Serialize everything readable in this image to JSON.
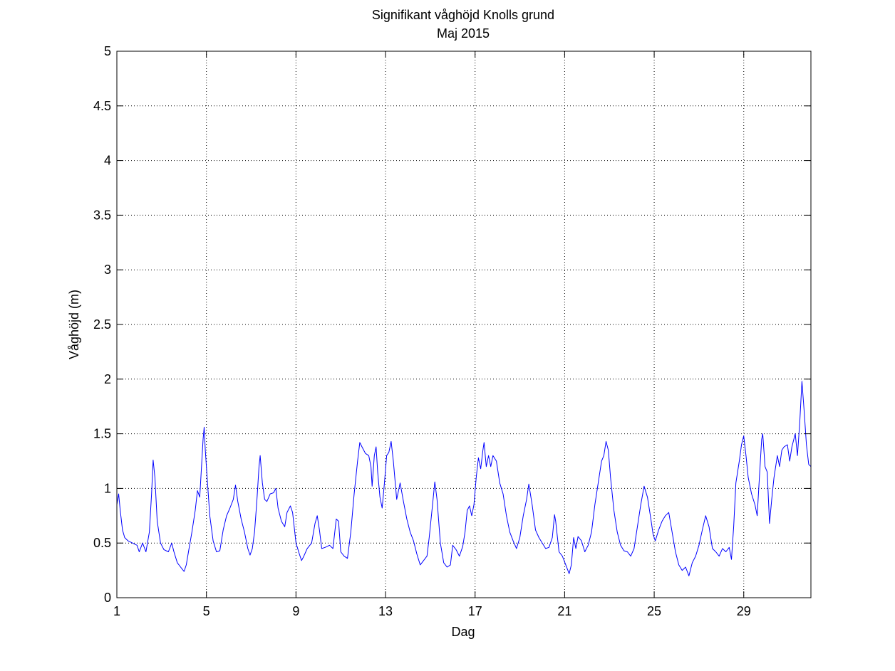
{
  "chart_data": {
    "type": "line",
    "title": "Signifikant våghöjd Knolls grund",
    "subtitle": "Maj 2015",
    "xlabel": "Dag",
    "ylabel": "Våghöjd (m)",
    "xlim": [
      1,
      32
    ],
    "ylim": [
      0,
      5
    ],
    "x_ticks": [
      1,
      5,
      9,
      13,
      17,
      21,
      25,
      29
    ],
    "x_tick_labels": [
      "1",
      "5",
      "9",
      "13",
      "17",
      "21",
      "25",
      "29"
    ],
    "y_ticks": [
      0,
      0.5,
      1,
      1.5,
      2,
      2.5,
      3,
      3.5,
      4,
      4.5,
      5
    ],
    "y_tick_labels": [
      "0",
      "0.5",
      "1",
      "1.5",
      "2",
      "2.5",
      "3",
      "3.5",
      "4",
      "4.5",
      "5"
    ],
    "grid": true,
    "grid_style": "dotted",
    "series": [
      {
        "color": "#0000ff",
        "points": [
          [
            1.0,
            0.85
          ],
          [
            1.08,
            0.95
          ],
          [
            1.15,
            0.8
          ],
          [
            1.25,
            0.62
          ],
          [
            1.35,
            0.55
          ],
          [
            1.5,
            0.52
          ],
          [
            1.7,
            0.5
          ],
          [
            1.9,
            0.48
          ],
          [
            2.0,
            0.42
          ],
          [
            2.15,
            0.5
          ],
          [
            2.3,
            0.42
          ],
          [
            2.45,
            0.6
          ],
          [
            2.55,
            0.95
          ],
          [
            2.62,
            1.26
          ],
          [
            2.7,
            1.1
          ],
          [
            2.8,
            0.7
          ],
          [
            2.95,
            0.5
          ],
          [
            3.1,
            0.44
          ],
          [
            3.3,
            0.42
          ],
          [
            3.45,
            0.5
          ],
          [
            3.55,
            0.42
          ],
          [
            3.7,
            0.32
          ],
          [
            3.85,
            0.28
          ],
          [
            4.0,
            0.24
          ],
          [
            4.1,
            0.3
          ],
          [
            4.2,
            0.42
          ],
          [
            4.35,
            0.6
          ],
          [
            4.5,
            0.8
          ],
          [
            4.6,
            0.98
          ],
          [
            4.7,
            0.92
          ],
          [
            4.78,
            1.2
          ],
          [
            4.85,
            1.45
          ],
          [
            4.9,
            1.56
          ],
          [
            4.95,
            1.35
          ],
          [
            5.05,
            1.05
          ],
          [
            5.15,
            0.75
          ],
          [
            5.3,
            0.52
          ],
          [
            5.45,
            0.42
          ],
          [
            5.6,
            0.43
          ],
          [
            5.75,
            0.62
          ],
          [
            5.9,
            0.75
          ],
          [
            6.05,
            0.82
          ],
          [
            6.2,
            0.9
          ],
          [
            6.3,
            1.03
          ],
          [
            6.4,
            0.88
          ],
          [
            6.55,
            0.72
          ],
          [
            6.7,
            0.6
          ],
          [
            6.85,
            0.45
          ],
          [
            6.95,
            0.39
          ],
          [
            7.05,
            0.45
          ],
          [
            7.15,
            0.6
          ],
          [
            7.25,
            0.88
          ],
          [
            7.35,
            1.2
          ],
          [
            7.4,
            1.3
          ],
          [
            7.5,
            1.05
          ],
          [
            7.6,
            0.9
          ],
          [
            7.7,
            0.88
          ],
          [
            7.85,
            0.95
          ],
          [
            8.0,
            0.96
          ],
          [
            8.1,
            1.0
          ],
          [
            8.2,
            0.82
          ],
          [
            8.35,
            0.7
          ],
          [
            8.5,
            0.65
          ],
          [
            8.6,
            0.78
          ],
          [
            8.75,
            0.84
          ],
          [
            8.85,
            0.78
          ],
          [
            9.0,
            0.5
          ],
          [
            9.15,
            0.4
          ],
          [
            9.25,
            0.34
          ],
          [
            9.35,
            0.38
          ],
          [
            9.5,
            0.45
          ],
          [
            9.7,
            0.5
          ],
          [
            9.85,
            0.68
          ],
          [
            9.95,
            0.75
          ],
          [
            10.05,
            0.62
          ],
          [
            10.15,
            0.45
          ],
          [
            10.3,
            0.46
          ],
          [
            10.5,
            0.48
          ],
          [
            10.65,
            0.45
          ],
          [
            10.8,
            0.72
          ],
          [
            10.9,
            0.7
          ],
          [
            11.0,
            0.42
          ],
          [
            11.15,
            0.38
          ],
          [
            11.3,
            0.36
          ],
          [
            11.45,
            0.6
          ],
          [
            11.6,
            0.95
          ],
          [
            11.75,
            1.25
          ],
          [
            11.85,
            1.42
          ],
          [
            11.95,
            1.38
          ],
          [
            12.1,
            1.32
          ],
          [
            12.25,
            1.3
          ],
          [
            12.35,
            1.2
          ],
          [
            12.4,
            1.02
          ],
          [
            12.5,
            1.3
          ],
          [
            12.58,
            1.38
          ],
          [
            12.65,
            1.15
          ],
          [
            12.75,
            0.92
          ],
          [
            12.85,
            0.82
          ],
          [
            12.95,
            1.05
          ],
          [
            13.05,
            1.3
          ],
          [
            13.15,
            1.33
          ],
          [
            13.25,
            1.43
          ],
          [
            13.35,
            1.25
          ],
          [
            13.5,
            0.9
          ],
          [
            13.65,
            1.05
          ],
          [
            13.8,
            0.88
          ],
          [
            13.95,
            0.72
          ],
          [
            14.1,
            0.6
          ],
          [
            14.25,
            0.52
          ],
          [
            14.4,
            0.4
          ],
          [
            14.55,
            0.3
          ],
          [
            14.7,
            0.34
          ],
          [
            14.85,
            0.38
          ],
          [
            14.95,
            0.55
          ],
          [
            15.1,
            0.85
          ],
          [
            15.2,
            1.06
          ],
          [
            15.3,
            0.9
          ],
          [
            15.45,
            0.5
          ],
          [
            15.6,
            0.32
          ],
          [
            15.75,
            0.28
          ],
          [
            15.9,
            0.3
          ],
          [
            16.0,
            0.48
          ],
          [
            16.15,
            0.44
          ],
          [
            16.3,
            0.38
          ],
          [
            16.45,
            0.47
          ],
          [
            16.55,
            0.6
          ],
          [
            16.65,
            0.8
          ],
          [
            16.75,
            0.84
          ],
          [
            16.85,
            0.75
          ],
          [
            16.95,
            0.85
          ],
          [
            17.05,
            1.1
          ],
          [
            17.15,
            1.28
          ],
          [
            17.25,
            1.18
          ],
          [
            17.35,
            1.35
          ],
          [
            17.4,
            1.42
          ],
          [
            17.5,
            1.2
          ],
          [
            17.6,
            1.3
          ],
          [
            17.7,
            1.2
          ],
          [
            17.8,
            1.3
          ],
          [
            17.95,
            1.25
          ],
          [
            18.1,
            1.05
          ],
          [
            18.25,
            0.95
          ],
          [
            18.4,
            0.75
          ],
          [
            18.55,
            0.6
          ],
          [
            18.7,
            0.52
          ],
          [
            18.85,
            0.45
          ],
          [
            19.0,
            0.55
          ],
          [
            19.15,
            0.75
          ],
          [
            19.3,
            0.9
          ],
          [
            19.4,
            1.04
          ],
          [
            19.55,
            0.85
          ],
          [
            19.7,
            0.62
          ],
          [
            19.85,
            0.55
          ],
          [
            20.0,
            0.5
          ],
          [
            20.15,
            0.45
          ],
          [
            20.3,
            0.46
          ],
          [
            20.45,
            0.55
          ],
          [
            20.55,
            0.76
          ],
          [
            20.6,
            0.7
          ],
          [
            20.75,
            0.42
          ],
          [
            20.9,
            0.38
          ],
          [
            21.05,
            0.3
          ],
          [
            21.2,
            0.22
          ],
          [
            21.3,
            0.3
          ],
          [
            21.4,
            0.55
          ],
          [
            21.5,
            0.45
          ],
          [
            21.6,
            0.56
          ],
          [
            21.75,
            0.52
          ],
          [
            21.9,
            0.42
          ],
          [
            22.05,
            0.48
          ],
          [
            22.2,
            0.6
          ],
          [
            22.35,
            0.85
          ],
          [
            22.5,
            1.05
          ],
          [
            22.65,
            1.25
          ],
          [
            22.75,
            1.3
          ],
          [
            22.85,
            1.43
          ],
          [
            22.95,
            1.35
          ],
          [
            23.05,
            1.1
          ],
          [
            23.2,
            0.8
          ],
          [
            23.35,
            0.6
          ],
          [
            23.5,
            0.48
          ],
          [
            23.65,
            0.43
          ],
          [
            23.8,
            0.42
          ],
          [
            23.95,
            0.38
          ],
          [
            24.1,
            0.45
          ],
          [
            24.25,
            0.65
          ],
          [
            24.4,
            0.85
          ],
          [
            24.55,
            1.02
          ],
          [
            24.7,
            0.92
          ],
          [
            24.85,
            0.72
          ],
          [
            24.95,
            0.58
          ],
          [
            25.05,
            0.52
          ],
          [
            25.2,
            0.62
          ],
          [
            25.35,
            0.7
          ],
          [
            25.5,
            0.75
          ],
          [
            25.65,
            0.78
          ],
          [
            25.8,
            0.6
          ],
          [
            25.95,
            0.42
          ],
          [
            26.1,
            0.3
          ],
          [
            26.25,
            0.25
          ],
          [
            26.4,
            0.28
          ],
          [
            26.55,
            0.2
          ],
          [
            26.7,
            0.32
          ],
          [
            26.85,
            0.38
          ],
          [
            27.0,
            0.48
          ],
          [
            27.15,
            0.62
          ],
          [
            27.3,
            0.75
          ],
          [
            27.45,
            0.65
          ],
          [
            27.6,
            0.45
          ],
          [
            27.75,
            0.42
          ],
          [
            27.9,
            0.38
          ],
          [
            28.05,
            0.45
          ],
          [
            28.2,
            0.42
          ],
          [
            28.35,
            0.46
          ],
          [
            28.45,
            0.35
          ],
          [
            28.55,
            0.65
          ],
          [
            28.65,
            1.05
          ],
          [
            28.8,
            1.25
          ],
          [
            28.9,
            1.4
          ],
          [
            29.0,
            1.48
          ],
          [
            29.1,
            1.3
          ],
          [
            29.2,
            1.1
          ],
          [
            29.35,
            0.95
          ],
          [
            29.5,
            0.85
          ],
          [
            29.6,
            0.75
          ],
          [
            29.7,
            1.1
          ],
          [
            29.8,
            1.45
          ],
          [
            29.85,
            1.5
          ],
          [
            29.95,
            1.2
          ],
          [
            30.05,
            1.15
          ],
          [
            30.15,
            0.68
          ],
          [
            30.25,
            0.9
          ],
          [
            30.35,
            1.1
          ],
          [
            30.5,
            1.3
          ],
          [
            30.6,
            1.2
          ],
          [
            30.7,
            1.35
          ],
          [
            30.8,
            1.38
          ],
          [
            30.95,
            1.4
          ],
          [
            31.05,
            1.25
          ],
          [
            31.15,
            1.38
          ],
          [
            31.3,
            1.5
          ],
          [
            31.4,
            1.3
          ],
          [
            31.5,
            1.6
          ],
          [
            31.6,
            1.98
          ],
          [
            31.7,
            1.7
          ],
          [
            31.8,
            1.4
          ],
          [
            31.9,
            1.22
          ],
          [
            32.0,
            1.2
          ]
        ]
      }
    ]
  }
}
